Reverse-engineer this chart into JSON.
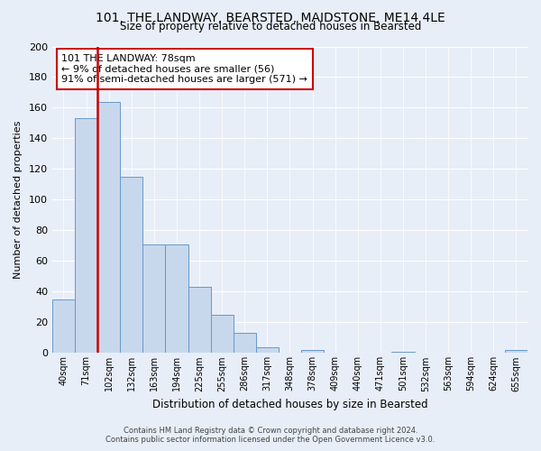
{
  "title": "101, THE LANDWAY, BEARSTED, MAIDSTONE, ME14 4LE",
  "subtitle": "Size of property relative to detached houses in Bearsted",
  "xlabel": "Distribution of detached houses by size in Bearsted",
  "ylabel": "Number of detached properties",
  "bin_labels": [
    "40sqm",
    "71sqm",
    "102sqm",
    "132sqm",
    "163sqm",
    "194sqm",
    "225sqm",
    "255sqm",
    "286sqm",
    "317sqm",
    "348sqm",
    "378sqm",
    "409sqm",
    "440sqm",
    "471sqm",
    "501sqm",
    "532sqm",
    "563sqm",
    "594sqm",
    "624sqm",
    "655sqm"
  ],
  "bar_heights": [
    35,
    153,
    164,
    115,
    71,
    71,
    43,
    25,
    13,
    4,
    0,
    2,
    0,
    0,
    0,
    1,
    0,
    0,
    0,
    0,
    2
  ],
  "bar_color": "#c8d8ec",
  "bar_edge_color": "#6699cc",
  "highlight_color": "#cc0000",
  "highlight_bar_index": 1,
  "annotation_line1": "101 THE LANDWAY: 78sqm",
  "annotation_line2": "← 9% of detached houses are smaller (56)",
  "annotation_line3": "91% of semi-detached houses are larger (571) →",
  "annotation_box_color": "#ffffff",
  "annotation_box_edge": "#cc0000",
  "ylim": [
    0,
    200
  ],
  "yticks": [
    0,
    20,
    40,
    60,
    80,
    100,
    120,
    140,
    160,
    180,
    200
  ],
  "footer_line1": "Contains HM Land Registry data © Crown copyright and database right 2024.",
  "footer_line2": "Contains public sector information licensed under the Open Government Licence v3.0.",
  "background_color": "#e8eef8",
  "plot_bg_color": "#e8eef8",
  "grid_color": "#ffffff"
}
